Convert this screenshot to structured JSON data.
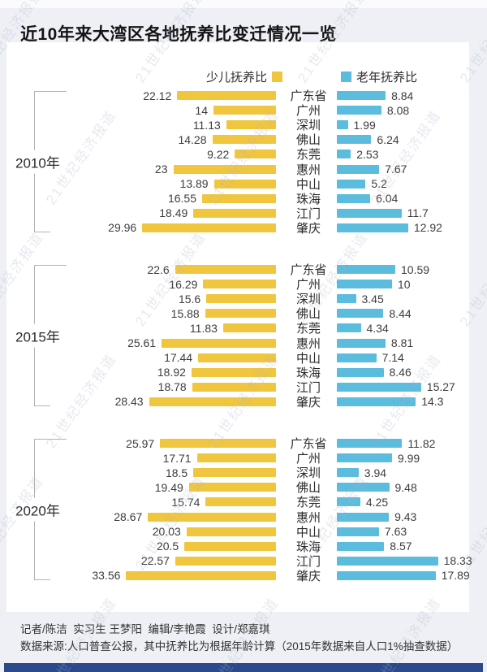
{
  "title": "近10年来大湾区各地抚养比变迁情况一览",
  "legend": {
    "left": "少儿抚养比",
    "right": "老年抚养比"
  },
  "colors": {
    "child_bar": "#f0c63f",
    "elderly_bar": "#5cbcde",
    "bottom_bar": "#2b4a8e",
    "background": "#eff0f5"
  },
  "watermark": "21世纪经济报道",
  "footer": {
    "credits": "记者/陈洁  实习生 王梦阳  编辑/李艳霞  设计/郑嘉琪",
    "source": "数据来源:人口普查公报，其中抚养比为根据年龄计算（2015年数据来自人口1%抽查数据）"
  },
  "chart_data": {
    "type": "bar",
    "orientation": "horizontal-diverging",
    "title": "近10年来大湾区各地抚养比变迁情况一览",
    "legend_entries": [
      "少儿抚养比",
      "老年抚养比"
    ],
    "legend_position": "top",
    "grid": false,
    "left_axis_max": 34,
    "right_axis_max": 19,
    "categories": [
      "广东省",
      "广州",
      "深圳",
      "佛山",
      "东莞",
      "惠州",
      "中山",
      "珠海",
      "江门",
      "肇庆"
    ],
    "groups": [
      {
        "year": "2010年",
        "series": [
          {
            "name": "少儿抚养比",
            "values": [
              "22.12",
              "14",
              "11.13",
              "14.28",
              "9.22",
              "23",
              "13.89",
              "16.55",
              "18.49",
              "29.96"
            ]
          },
          {
            "name": "老年抚养比",
            "values": [
              "8.84",
              "8.08",
              "1.99",
              "6.24",
              "2.53",
              "7.67",
              "5.2",
              "6.04",
              "11.7",
              "12.92"
            ]
          }
        ]
      },
      {
        "year": "2015年",
        "series": [
          {
            "name": "少儿抚养比",
            "values": [
              "22.6",
              "16.29",
              "15.6",
              "15.88",
              "11.83",
              "25.61",
              "17.44",
              "18.92",
              "18.78",
              "28.43"
            ]
          },
          {
            "name": "老年抚养比",
            "values": [
              "10.59",
              "10",
              "3.45",
              "8.44",
              "4.34",
              "8.81",
              "7.14",
              "8.46",
              "15.27",
              "14.3"
            ]
          }
        ]
      },
      {
        "year": "2020年",
        "series": [
          {
            "name": "少儿抚养比",
            "values": [
              "25.97",
              "17.71",
              "18.5",
              "19.49",
              "15.74",
              "28.67",
              "20.03",
              "20.5",
              "22.57",
              "33.56"
            ]
          },
          {
            "name": "老年抚养比",
            "values": [
              "11.82",
              "9.99",
              "3.94",
              "9.48",
              "4.25",
              "9.43",
              "7.63",
              "8.57",
              "18.33",
              "17.89"
            ]
          }
        ]
      }
    ]
  }
}
